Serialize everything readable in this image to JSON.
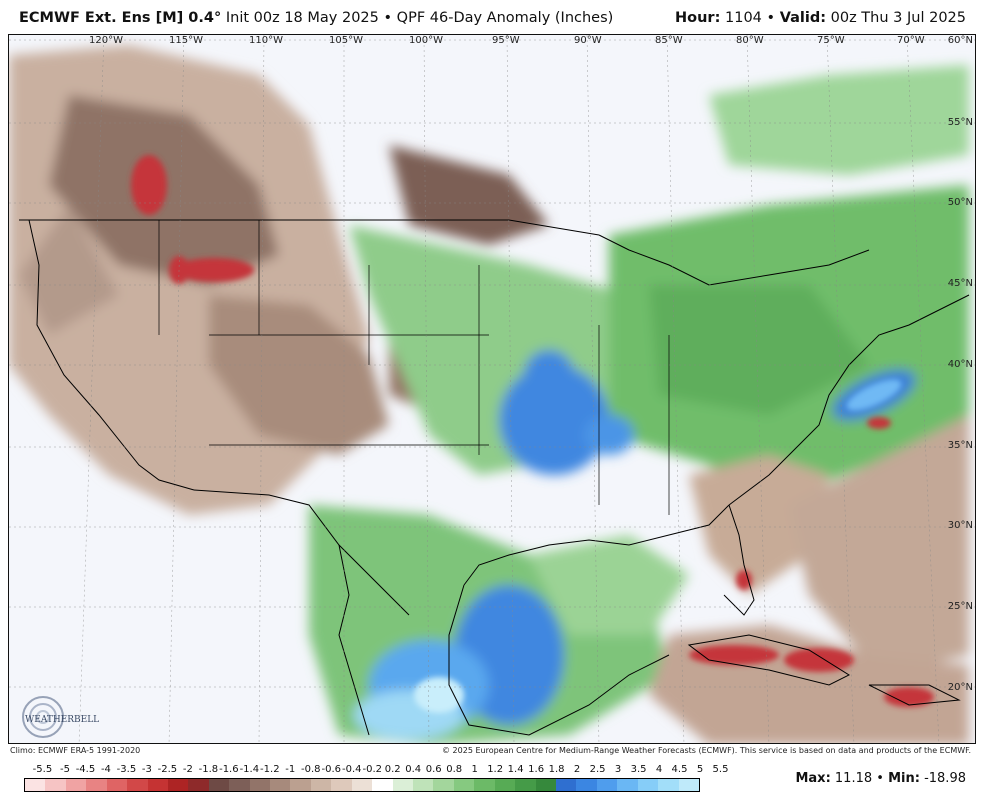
{
  "header": {
    "model": "ECMWF Ext. Ens [M] 0.4",
    "degree": "°",
    "init": "Init 00z 18 May 2025",
    "separator": "•",
    "product": "QPF 46-Day Anomaly (Inches)",
    "hour_label": "Hour:",
    "hour_value": "1104",
    "valid_label": "Valid:",
    "valid_value": "00z Thu 3 Jul 2025"
  },
  "map": {
    "longitudes": [
      "120°W",
      "115°W",
      "110°W",
      "105°W",
      "100°W",
      "95°W",
      "90°W",
      "85°W",
      "80°W",
      "75°W",
      "70°W"
    ],
    "latitudes": [
      "60°N",
      "55°N",
      "50°N",
      "45°N",
      "40°N",
      "35°N",
      "30°N",
      "25°N",
      "20°N"
    ],
    "logo_text": "WEATHERBELL"
  },
  "footer": {
    "climo": "Climo: ECMWF ERA-5 1991-2020",
    "copyright": "© 2025 European Centre for Medium-Range Weather Forecasts (ECMWF). This service is based on data and products of the ECMWF.",
    "max_label": "Max:",
    "max_value": "11.18",
    "min_label": "Min:",
    "min_value": "-18.98"
  },
  "legend": {
    "labels": [
      "-5.5",
      "-5",
      "-4.5",
      "-4",
      "-3.5",
      "-3",
      "-2.5",
      "-2",
      "-1.8",
      "-1.6",
      "-1.4",
      "-1.2",
      "-1",
      "-0.8",
      "-0.6",
      "-0.4",
      "-0.2",
      "0.2",
      "0.4",
      "0.6",
      "0.8",
      "1",
      "1.2",
      "1.4",
      "1.6",
      "1.8",
      "2",
      "2.5",
      "3",
      "3.5",
      "4",
      "4.5",
      "5",
      "5.5"
    ],
    "colors": [
      "#fbe3e3",
      "#f6c4c4",
      "#f0a3a3",
      "#e88383",
      "#df6464",
      "#d24848",
      "#c53333",
      "#ad2424",
      "#8e2a2a",
      "#6e4a45",
      "#7d5f58",
      "#927469",
      "#a78a7c",
      "#bba090",
      "#cdb6a6",
      "#dec9bb",
      "#ece0d6",
      "#ffffff",
      "#dbefd7",
      "#bfe3b9",
      "#a3d69c",
      "#86c980",
      "#6cba67",
      "#57ab55",
      "#459b48",
      "#36893c",
      "#2f6fd0",
      "#3b86e2",
      "#4f9ded",
      "#6ab7f4",
      "#86cdf8",
      "#a2def9",
      "#bfeafa"
    ]
  }
}
